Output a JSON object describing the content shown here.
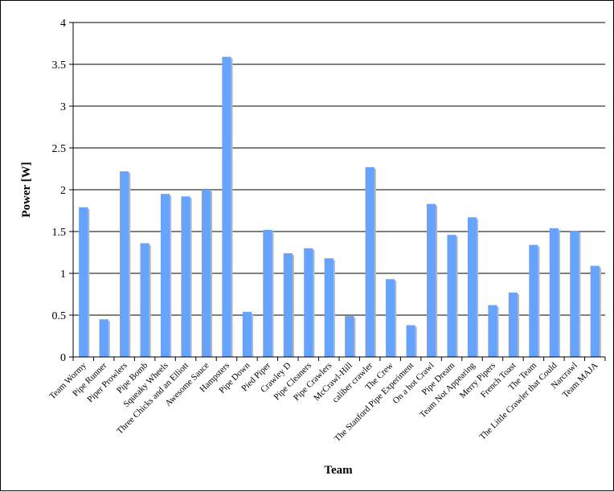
{
  "chart_data": {
    "type": "bar",
    "xlabel": "Team",
    "ylabel": "Power [W]",
    "ylim": [
      0,
      4
    ],
    "yticks": [
      "0",
      "0.5",
      "1",
      "1.5",
      "2",
      "2.5",
      "3",
      "3.5",
      "4"
    ],
    "grid": true,
    "legend": "none",
    "bar_color": "#66a3ff",
    "categories": [
      "Team Wormy",
      "Pipe Runner",
      "Piper Prowlers",
      "Pipe Bomb",
      "Squeaky Wheels",
      "Three Chicks and an Elliott",
      "Awesome Sauce",
      "Hampsters",
      "Pipe Down",
      "Pied Piper",
      "Crawley D",
      "Pipe Cleaners",
      "Pipe Crawlers",
      "McCrawl-Hill",
      "caliber crawler",
      "The Crew",
      "The Stanford Pipe Experiment",
      "On a hot Crawl",
      "Pipe Dream",
      "Team Not Appearing",
      "Merry Pipers",
      "French Toast",
      "The Team",
      "The Little Crawler that Could",
      "Narcrawl",
      "Team MAJA"
    ],
    "values": [
      1.79,
      0.45,
      2.22,
      1.36,
      1.95,
      1.92,
      2.0,
      3.59,
      0.54,
      1.52,
      1.24,
      1.3,
      1.18,
      0.49,
      2.27,
      0.93,
      0.38,
      1.83,
      1.46,
      1.67,
      0.62,
      0.77,
      1.34,
      1.54,
      1.51,
      1.09
    ]
  }
}
